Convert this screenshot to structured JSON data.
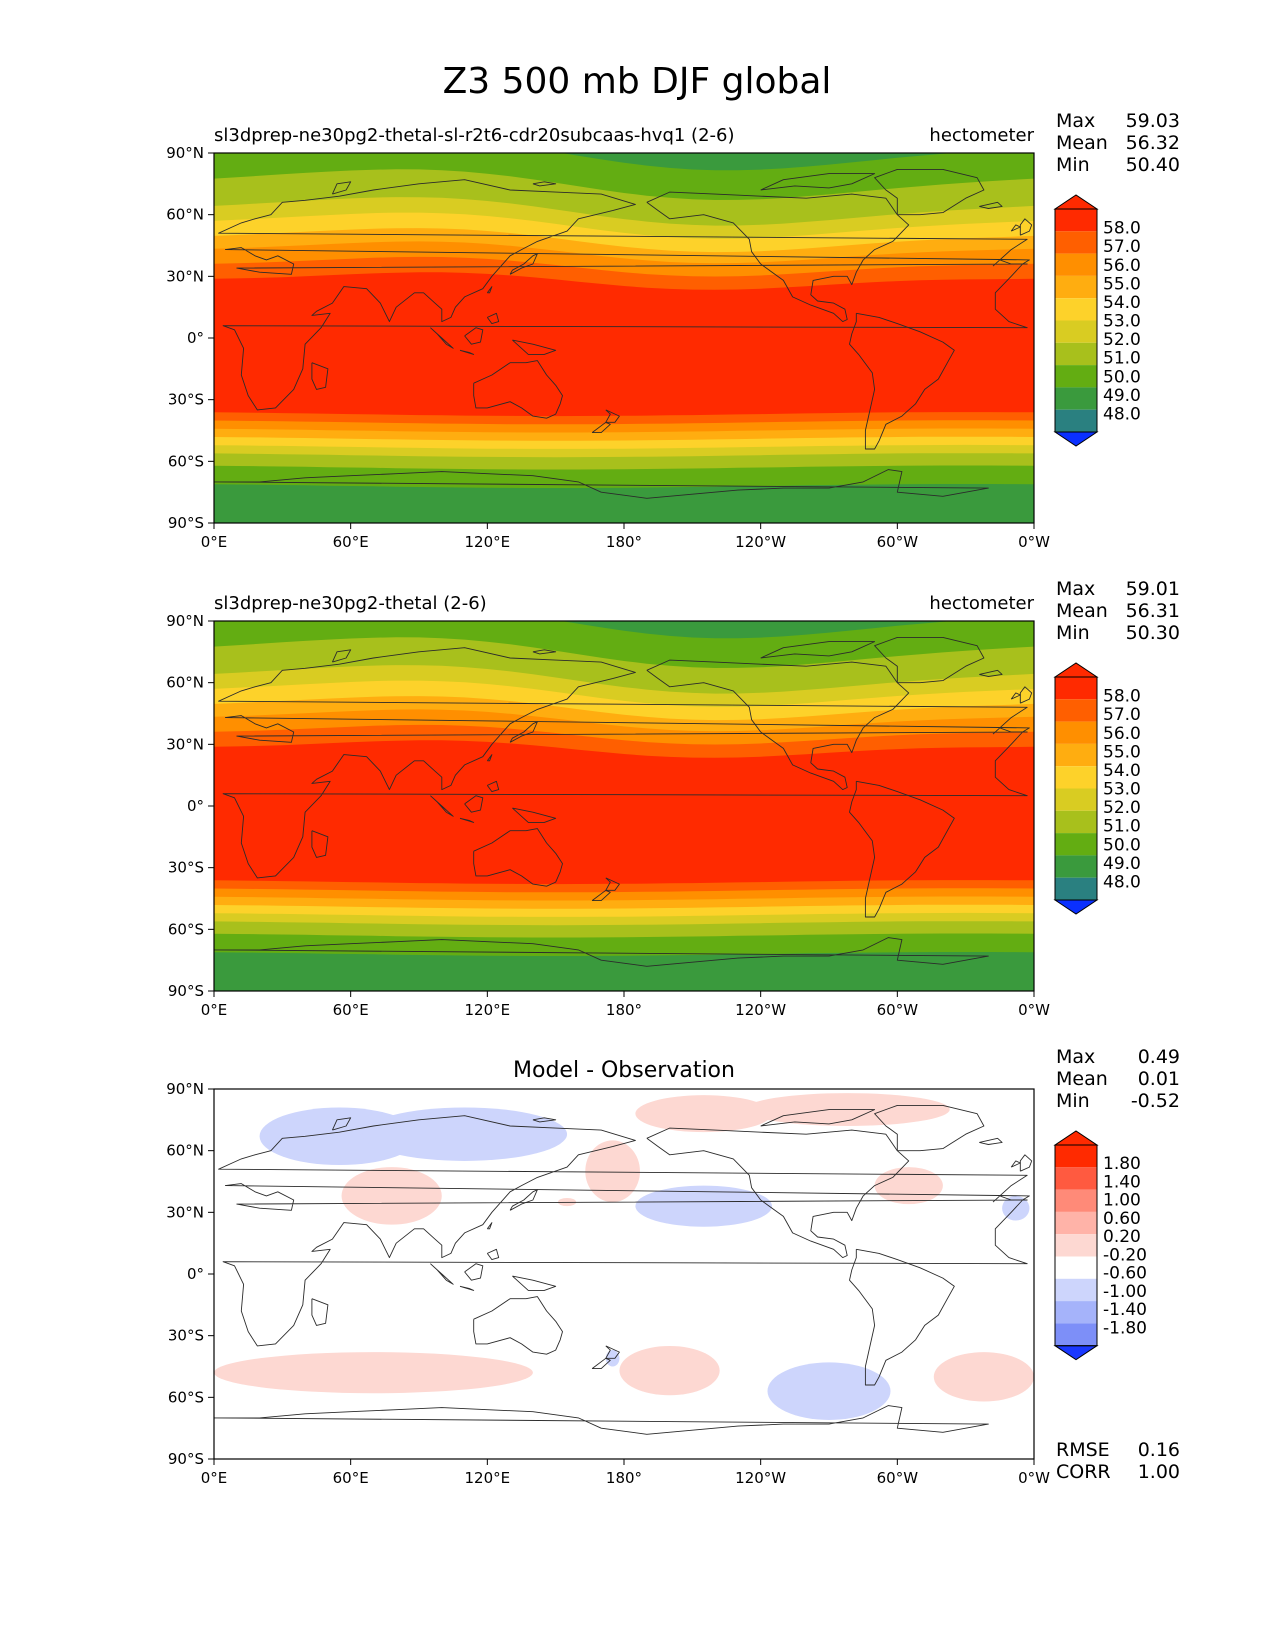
{
  "figure": {
    "title": "Z3 500 mb DJF global"
  },
  "colors": {
    "ocean_red": "#ff2a00",
    "diff_white": "#ffffff",
    "frame": "#000000",
    "coast": "#2b2b2b"
  },
  "chart_data": [
    {
      "type": "heatmap",
      "title_left": "sl3dprep-ne30pg2-thetal-sl-r2t6-cdr20subcaas-hvq1 (2-6)",
      "title_right": "hectometer",
      "stats": [
        {
          "label": "Max",
          "value": "59.03"
        },
        {
          "label": "Mean",
          "value": "56.32"
        },
        {
          "label": "Min",
          "value": "50.40"
        }
      ],
      "x_ticks": [
        "0°E",
        "60°E",
        "120°E",
        "180°",
        "120°W",
        "60°W",
        "0°W"
      ],
      "y_ticks": [
        "90°N",
        "60°N",
        "30°N",
        "0°",
        "30°S",
        "60°S",
        "90°S"
      ],
      "xlim": [
        0,
        360
      ],
      "ylim": [
        -90,
        90
      ],
      "colorbar": {
        "labels": [
          "58.0",
          "57.0",
          "56.0",
          "55.0",
          "54.0",
          "53.0",
          "52.0",
          "51.0",
          "50.0",
          "49.0",
          "48.0"
        ],
        "colors": [
          "#ff2a00",
          "#ff5f00",
          "#ff8f00",
          "#ffad10",
          "#fdd22a",
          "#d9cc22",
          "#a8c01c",
          "#63ad12",
          "#3a9a3d",
          "#2a8080",
          "#0b66c2",
          "#0a30ff"
        ]
      },
      "bands_north": [
        {
          "lat": 90,
          "value": 50.4
        },
        {
          "lat": 75,
          "value": 51.5
        },
        {
          "lat": 62,
          "value": 52.5
        },
        {
          "lat": 55,
          "value": 53.5
        },
        {
          "lat": 48,
          "value": 54.5
        },
        {
          "lat": 42,
          "value": 55.5
        },
        {
          "lat": 35,
          "value": 56.5
        },
        {
          "lat": 28,
          "value": 57.5
        },
        {
          "lat": 22,
          "value": 58.5
        }
      ],
      "bands_south": [
        {
          "lat": -33,
          "value": 58.5
        },
        {
          "lat": -37,
          "value": 57.5
        },
        {
          "lat": -41,
          "value": 56.5
        },
        {
          "lat": -45,
          "value": 55.5
        },
        {
          "lat": -49,
          "value": 54.5
        },
        {
          "lat": -53,
          "value": 53.5
        },
        {
          "lat": -57,
          "value": 52.5
        },
        {
          "lat": -63,
          "value": 51.5
        },
        {
          "lat": -72,
          "value": 50.5
        }
      ]
    },
    {
      "type": "heatmap",
      "title_left": "sl3dprep-ne30pg2-thetal (2-6)",
      "title_right": "hectometer",
      "stats": [
        {
          "label": "Max",
          "value": "59.01"
        },
        {
          "label": "Mean",
          "value": "56.31"
        },
        {
          "label": "Min",
          "value": "50.30"
        }
      ],
      "x_ticks": [
        "0°E",
        "60°E",
        "120°E",
        "180°",
        "120°W",
        "60°W",
        "0°W"
      ],
      "y_ticks": [
        "90°N",
        "60°N",
        "30°N",
        "0°",
        "30°S",
        "60°S",
        "90°S"
      ],
      "xlim": [
        0,
        360
      ],
      "ylim": [
        -90,
        90
      ],
      "colorbar": {
        "labels": [
          "58.0",
          "57.0",
          "56.0",
          "55.0",
          "54.0",
          "53.0",
          "52.0",
          "51.0",
          "50.0",
          "49.0",
          "48.0"
        ],
        "colors": [
          "#ff2a00",
          "#ff5f00",
          "#ff8f00",
          "#ffad10",
          "#fdd22a",
          "#d9cc22",
          "#a8c01c",
          "#63ad12",
          "#3a9a3d",
          "#2a8080",
          "#0b66c2",
          "#0a30ff"
        ]
      },
      "bands_north": [
        {
          "lat": 90,
          "value": 50.3
        },
        {
          "lat": 75,
          "value": 51.5
        },
        {
          "lat": 62,
          "value": 52.5
        },
        {
          "lat": 55,
          "value": 53.5
        },
        {
          "lat": 48,
          "value": 54.5
        },
        {
          "lat": 42,
          "value": 55.5
        },
        {
          "lat": 35,
          "value": 56.5
        },
        {
          "lat": 28,
          "value": 57.5
        },
        {
          "lat": 22,
          "value": 58.5
        }
      ],
      "bands_south": [
        {
          "lat": -33,
          "value": 58.5
        },
        {
          "lat": -37,
          "value": 57.5
        },
        {
          "lat": -41,
          "value": 56.5
        },
        {
          "lat": -45,
          "value": 55.5
        },
        {
          "lat": -49,
          "value": 54.5
        },
        {
          "lat": -53,
          "value": 53.5
        },
        {
          "lat": -57,
          "value": 52.5
        },
        {
          "lat": -63,
          "value": 51.5
        },
        {
          "lat": -72,
          "value": 50.5
        }
      ]
    },
    {
      "type": "heatmap",
      "title_center": "Model - Observation",
      "stats": [
        {
          "label": "Max",
          "value": "0.49"
        },
        {
          "label": "Mean",
          "value": "0.01"
        },
        {
          "label": "Min",
          "value": "-0.52"
        }
      ],
      "stats_bottom": [
        {
          "label": "RMSE",
          "value": "0.16"
        },
        {
          "label": "CORR",
          "value": "1.00"
        }
      ],
      "x_ticks": [
        "0°E",
        "60°E",
        "120°E",
        "180°",
        "120°W",
        "60°W",
        "0°W"
      ],
      "y_ticks": [
        "90°N",
        "60°N",
        "30°N",
        "0°",
        "30°S",
        "60°S",
        "90°S"
      ],
      "xlim": [
        0,
        360
      ],
      "ylim": [
        -90,
        90
      ],
      "colorbar": {
        "labels": [
          "1.80",
          "1.40",
          "1.00",
          "0.60",
          "0.20",
          "-0.20",
          "-0.60",
          "-1.00",
          "-1.40",
          "-1.80"
        ],
        "colors": [
          "#ff2a00",
          "#ff5a40",
          "#ff8a78",
          "#ffb3a8",
          "#fdd8d2",
          "#ffffff",
          "#cdd5fc",
          "#a5b3fa",
          "#7d8ff8",
          "#4a66fb",
          "#1a38ff"
        ]
      },
      "anomalies": [
        {
          "lon": 55,
          "lat": 67,
          "rlon": 35,
          "rlat": 14,
          "sign": -1
        },
        {
          "lon": 110,
          "lat": 68,
          "rlon": 45,
          "rlat": 13,
          "sign": -1
        },
        {
          "lon": 78,
          "lat": 38,
          "rlon": 22,
          "rlat": 14,
          "sign": 1
        },
        {
          "lon": 155,
          "lat": 35,
          "rlon": 4,
          "rlat": 2,
          "sign": 1
        },
        {
          "lon": 175,
          "lat": 50,
          "rlon": 12,
          "rlat": 15,
          "sign": 1
        },
        {
          "lon": 215,
          "lat": 78,
          "rlon": 30,
          "rlat": 9,
          "sign": 1
        },
        {
          "lon": 278,
          "lat": 80,
          "rlon": 45,
          "rlat": 8,
          "sign": 1
        },
        {
          "lon": 215,
          "lat": 33,
          "rlon": 30,
          "rlat": 10,
          "sign": -1
        },
        {
          "lon": 305,
          "lat": 43,
          "rlon": 15,
          "rlat": 9,
          "sign": 1
        },
        {
          "lon": 352,
          "lat": 32,
          "rlon": 6,
          "rlat": 6,
          "sign": -1
        },
        {
          "lon": 175,
          "lat": -41,
          "rlon": 3,
          "rlat": 4,
          "sign": -1
        },
        {
          "lon": 70,
          "lat": -48,
          "rlon": 70,
          "rlat": 10,
          "sign": 1
        },
        {
          "lon": 200,
          "lat": -47,
          "rlon": 22,
          "rlat": 12,
          "sign": 1
        },
        {
          "lon": 270,
          "lat": -57,
          "rlon": 27,
          "rlat": 14,
          "sign": -1
        },
        {
          "lon": 338,
          "lat": -50,
          "rlon": 22,
          "rlat": 12,
          "sign": 1
        }
      ]
    }
  ]
}
